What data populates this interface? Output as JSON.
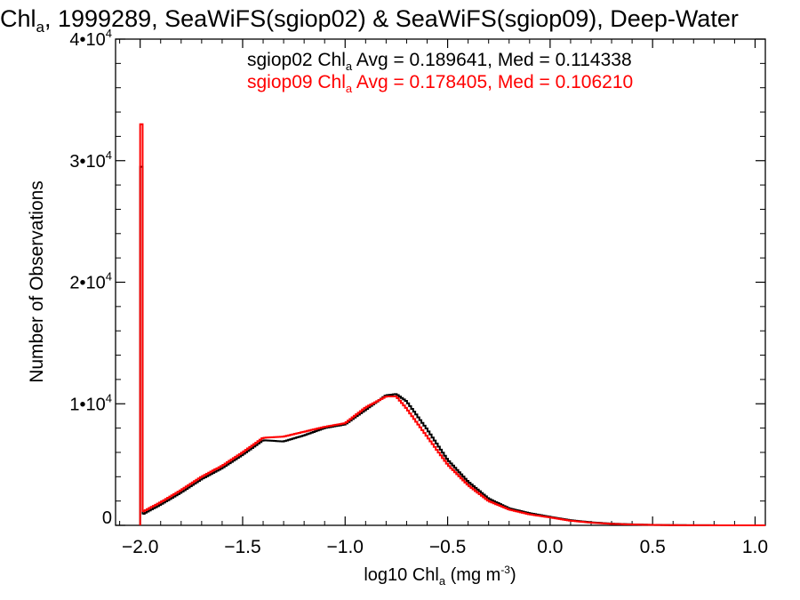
{
  "chart_data": {
    "type": "line",
    "title": {
      "prefix": "Chl",
      "sub": "a",
      "rest": ", 1999289, SeaWiFS(sgiop02) & SeaWiFS(sgiop09), Deep-Water"
    },
    "xlabel": {
      "prefix": "log10 Chl",
      "sub": "a",
      "mid": " (mg m",
      "sup": "-3",
      "suffix": ")"
    },
    "ylabel": "Number of Observations",
    "xlim": [
      -2.12,
      1.05
    ],
    "ylim": [
      0,
      40000
    ],
    "x_ticks": [
      {
        "value": -2.0,
        "label": "−2.0"
      },
      {
        "value": -1.5,
        "label": "−1.5"
      },
      {
        "value": -1.0,
        "label": "−1.0"
      },
      {
        "value": -0.5,
        "label": "−0.5"
      },
      {
        "value": 0.0,
        "label": "0.0"
      },
      {
        "value": 0.5,
        "label": "0.5"
      },
      {
        "value": 1.0,
        "label": "1.0"
      }
    ],
    "y_ticks": [
      {
        "value": 0,
        "base": "0",
        "exp": ""
      },
      {
        "value": 10000,
        "base": "1•10",
        "exp": "4"
      },
      {
        "value": 20000,
        "base": "2•10",
        "exp": "4"
      },
      {
        "value": 30000,
        "base": "3•10",
        "exp": "4"
      },
      {
        "value": 40000,
        "base": "4•10",
        "exp": "4"
      }
    ],
    "legend": {
      "placement": "top",
      "entries": [
        {
          "series": "sgiop02",
          "prefix": "sgiop02 Chl",
          "sub": "a",
          "rest": " Avg = 0.189641, Med = 0.114338",
          "color": "#000000"
        },
        {
          "series": "sgiop09",
          "prefix": "sgiop09 Chl",
          "sub": "a",
          "rest": " Avg = 0.178405, Med = 0.106210",
          "color": "#ff0000"
        }
      ]
    },
    "x": [
      -2.0,
      -1.9,
      -1.8,
      -1.7,
      -1.6,
      -1.5,
      -1.4,
      -1.3,
      -1.2,
      -1.1,
      -1.0,
      -0.9,
      -0.8,
      -0.75,
      -0.7,
      -0.6,
      -0.5,
      -0.4,
      -0.3,
      -0.2,
      -0.1,
      0.0,
      0.1,
      0.2,
      0.3,
      0.4,
      0.5,
      0.6,
      0.7,
      0.8,
      0.9,
      1.0,
      1.05
    ],
    "series": [
      {
        "name": "sgiop02",
        "color": "#000000",
        "spike": {
          "x": -2.0,
          "value": 29500
        },
        "values": [
          800,
          1700,
          2700,
          3800,
          4700,
          5800,
          7000,
          6900,
          7400,
          8000,
          8300,
          9500,
          10700,
          10800,
          10200,
          7900,
          5400,
          3600,
          2200,
          1400,
          1000,
          700,
          420,
          250,
          140,
          80,
          40,
          20,
          10,
          5,
          2,
          0,
          0
        ]
      },
      {
        "name": "sgiop09",
        "color": "#ff0000",
        "spike": {
          "x": -2.0,
          "value": 33000
        },
        "values": [
          1000,
          1900,
          2900,
          4000,
          4900,
          6000,
          7200,
          7300,
          7700,
          8100,
          8400,
          9700,
          10600,
          10600,
          9600,
          7300,
          5000,
          3300,
          2000,
          1300,
          900,
          650,
          380,
          220,
          120,
          70,
          35,
          15,
          8,
          4,
          2,
          0,
          0
        ]
      }
    ],
    "grid": false,
    "colors": {
      "series1": "#000000",
      "series2": "#ff0000",
      "axes": "#000000"
    }
  }
}
